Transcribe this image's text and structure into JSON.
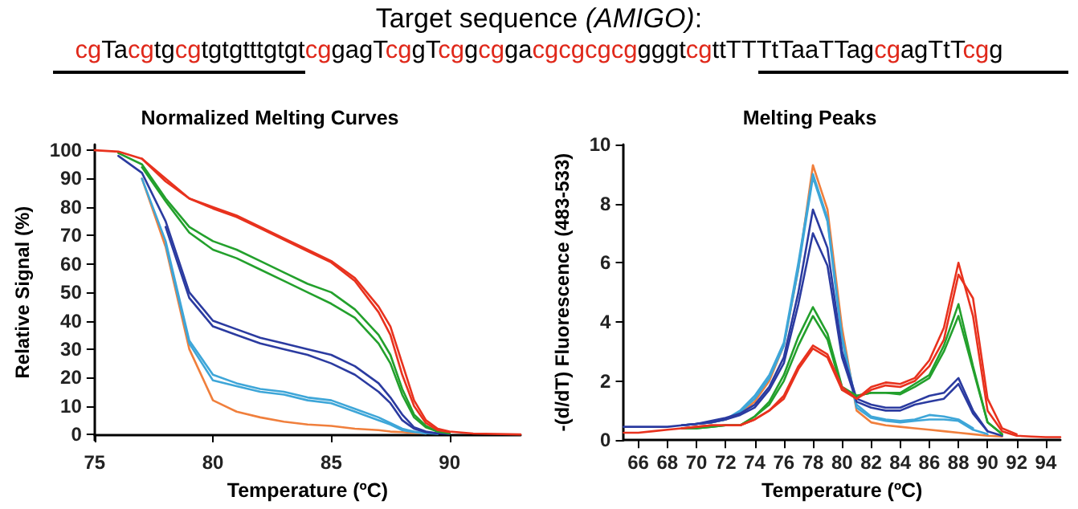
{
  "chart_data": [
    {
      "type": "other",
      "title": "Target sequence (AMIGO):",
      "annotations": [
        "cgTacgtgcgtgtgtttgtgtcggagTcggTcggcggacgcgcgcggggtcgttTTTtTaaTTagcgagTtTcgg"
      ]
    },
    {
      "type": "line",
      "title": "Normalized Melting Curves",
      "xlabel": "Temperature (ºC)",
      "ylabel": "Relative Signal (%)",
      "xlim": [
        75,
        93
      ],
      "xticks": [
        75,
        80,
        85,
        90
      ],
      "ylim": [
        -2,
        102
      ],
      "yticks": [
        0,
        10,
        20,
        30,
        40,
        50,
        60,
        70,
        80,
        90,
        100
      ],
      "grid": false,
      "marker": "none",
      "line_style": "solid",
      "x": [
        75,
        76,
        77,
        78,
        79,
        80,
        81,
        82,
        83,
        84,
        85,
        86,
        87,
        87.5,
        88,
        88.5,
        89,
        89.5,
        90,
        91,
        93
      ],
      "series": [
        {
          "color": "#f07f3c",
          "values": [
            null,
            null,
            90,
            66,
            30,
            12,
            8,
            6,
            4.5,
            3.5,
            3,
            2,
            1.5,
            1,
            0.8,
            0.5,
            0.3,
            null,
            null,
            null,
            null
          ]
        },
        {
          "color": "#3ea6d8",
          "values": [
            null,
            null,
            null,
            67,
            32,
            19,
            17,
            15,
            14,
            12,
            11,
            8,
            5,
            3.5,
            1.5,
            0.8,
            0.3,
            null,
            null,
            null,
            null
          ]
        },
        {
          "color": "#3ea6d8",
          "values": [
            null,
            null,
            90,
            68,
            33,
            21,
            18,
            16,
            15,
            13,
            12,
            9,
            6,
            4,
            2,
            1,
            0.5,
            0.2,
            null,
            null,
            null
          ]
        },
        {
          "color": "#2b3ba0",
          "values": [
            null,
            null,
            null,
            73,
            48,
            38,
            35,
            32,
            30,
            28,
            25,
            21,
            15,
            11,
            5,
            2,
            0.8,
            0.3,
            null,
            null,
            null
          ]
        },
        {
          "color": "#2b3ba0",
          "values": [
            null,
            98,
            92,
            75,
            50,
            40,
            37,
            34,
            32,
            30,
            28,
            24,
            18,
            13,
            7,
            2.5,
            1,
            0.4,
            0.2,
            null,
            null
          ]
        },
        {
          "color": "#23a02c",
          "values": [
            null,
            null,
            94,
            82,
            71,
            65,
            62,
            58,
            54,
            50,
            46,
            41,
            32,
            25,
            14,
            6,
            2.5,
            1,
            0.4,
            null,
            null
          ]
        },
        {
          "color": "#23a02c",
          "values": [
            null,
            99,
            95,
            83,
            73,
            68,
            65,
            61,
            57,
            53,
            50,
            44,
            35,
            28,
            16,
            7,
            3,
            1,
            0.5,
            null,
            null
          ]
        },
        {
          "color": "#e8321e",
          "values": [
            null,
            null,
            97,
            89,
            83,
            79.5,
            76.5,
            72.5,
            68.5,
            64.5,
            60.5,
            54,
            43,
            35,
            21,
            10,
            4,
            1.5,
            0.8,
            null,
            null
          ]
        },
        {
          "color": "#e8321e",
          "values": [
            100,
            99.5,
            97,
            90,
            83,
            80,
            77,
            73,
            69,
            65,
            61,
            55,
            45,
            38,
            25,
            12,
            5,
            2,
            1,
            0.3,
            0
          ]
        }
      ]
    },
    {
      "type": "line",
      "title": "Melting Peaks",
      "xlabel": "Temperature (ºC)",
      "ylabel": "-(d/dT) Fluorescence (483-533)",
      "xlim": [
        65,
        95
      ],
      "xticks": [
        66,
        68,
        70,
        72,
        74,
        76,
        78,
        80,
        82,
        84,
        86,
        88,
        90,
        92,
        94
      ],
      "ylim": [
        0,
        10
      ],
      "yticks": [
        0,
        2,
        4,
        6,
        8,
        10
      ],
      "grid": false,
      "marker": "none",
      "line_style": "solid",
      "x": [
        65,
        66,
        67,
        68,
        69,
        70,
        71,
        72,
        73,
        74,
        75,
        76,
        77,
        78,
        79,
        80,
        81,
        82,
        83,
        84,
        85,
        86,
        87,
        88,
        89,
        90,
        91,
        92,
        93,
        94,
        95
      ],
      "series": [
        {
          "color": "#f07f3c",
          "values": [
            null,
            null,
            null,
            null,
            0.5,
            0.55,
            0.6,
            0.7,
            0.9,
            1.3,
            2.0,
            3.2,
            5.8,
            9.3,
            7.8,
            3.8,
            1.0,
            0.6,
            0.5,
            0.45,
            0.4,
            0.35,
            0.3,
            0.25,
            0.2,
            0.15,
            0.12,
            null,
            null,
            null,
            null
          ]
        },
        {
          "color": "#3ea6d8",
          "values": [
            null,
            null,
            null,
            null,
            0.5,
            0.55,
            0.6,
            0.7,
            0.95,
            1.4,
            2.1,
            3.2,
            5.8,
            8.9,
            7.4,
            3.4,
            1.1,
            0.75,
            0.65,
            0.6,
            0.65,
            0.7,
            0.7,
            0.65,
            0.35,
            0.2,
            null,
            null,
            null,
            null,
            null
          ]
        },
        {
          "color": "#3ea6d8",
          "values": [
            null,
            null,
            null,
            null,
            0.5,
            0.55,
            0.6,
            0.7,
            1.0,
            1.5,
            2.2,
            3.3,
            6.0,
            9.0,
            7.5,
            3.5,
            1.2,
            0.8,
            0.7,
            0.65,
            0.7,
            0.85,
            0.8,
            0.7,
            0.4,
            null,
            null,
            null,
            null,
            null,
            null
          ]
        },
        {
          "color": "#2b3ba0",
          "values": [
            null,
            null,
            null,
            null,
            0.5,
            0.55,
            0.6,
            0.7,
            0.85,
            1.1,
            1.7,
            2.6,
            4.6,
            7.0,
            5.9,
            2.8,
            1.3,
            1.1,
            1.0,
            1.0,
            1.2,
            1.3,
            1.4,
            1.9,
            0.9,
            0.3,
            null,
            null,
            null,
            null,
            null
          ]
        },
        {
          "color": "#2b3ba0",
          "values": [
            0.45,
            0.45,
            0.45,
            0.45,
            0.5,
            0.55,
            0.65,
            0.75,
            0.9,
            1.2,
            1.8,
            2.8,
            5.0,
            7.8,
            6.5,
            3.0,
            1.4,
            1.2,
            1.1,
            1.1,
            1.3,
            1.5,
            1.6,
            2.1,
            1.0,
            0.3,
            0.15,
            null,
            null,
            null,
            null
          ]
        },
        {
          "color": "#23a02c",
          "values": [
            null,
            null,
            null,
            null,
            0.4,
            0.4,
            0.45,
            0.5,
            0.5,
            0.8,
            1.2,
            2.0,
            3.2,
            4.2,
            3.4,
            1.7,
            1.5,
            1.6,
            1.6,
            1.55,
            1.8,
            2.1,
            3.0,
            4.2,
            2.4,
            0.6,
            0.2,
            null,
            null,
            null,
            null
          ]
        },
        {
          "color": "#23a02c",
          "values": [
            null,
            null,
            null,
            null,
            0.4,
            0.4,
            0.45,
            0.5,
            0.5,
            0.8,
            1.3,
            2.2,
            3.5,
            4.5,
            3.6,
            1.8,
            1.5,
            1.6,
            1.6,
            1.6,
            1.9,
            2.2,
            3.2,
            4.6,
            2.5,
            0.6,
            0.2,
            null,
            null,
            null,
            null
          ]
        },
        {
          "color": "#e8321e",
          "values": [
            null,
            null,
            null,
            null,
            0.4,
            0.45,
            0.5,
            0.5,
            0.5,
            0.7,
            1.0,
            1.4,
            2.4,
            3.1,
            2.8,
            1.7,
            1.4,
            1.7,
            1.85,
            1.8,
            2.0,
            2.5,
            3.4,
            5.6,
            4.8,
            1.4,
            0.4,
            0.2,
            null,
            null,
            null
          ]
        },
        {
          "color": "#e8321e",
          "values": [
            0.25,
            0.25,
            0.3,
            0.35,
            0.4,
            0.45,
            0.5,
            0.5,
            0.5,
            0.7,
            1.0,
            1.5,
            2.5,
            3.2,
            2.9,
            1.8,
            1.4,
            1.8,
            1.95,
            1.9,
            2.1,
            2.7,
            3.8,
            6.0,
            4.2,
            1.0,
            0.3,
            0.15,
            0.12,
            0.1,
            0.1
          ]
        }
      ]
    }
  ]
}
